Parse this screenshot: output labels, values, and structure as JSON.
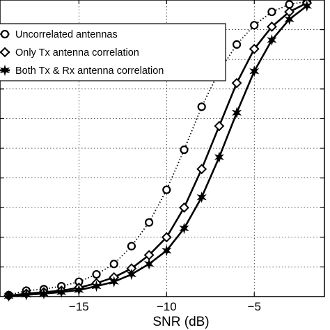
{
  "chart_data": {
    "type": "line",
    "title": "",
    "xlabel": "SNR (dB)",
    "ylabel": "",
    "xlim": [
      -19.5,
      -1
    ],
    "ylim": [
      0,
      1
    ],
    "grid": true,
    "legend_position": "top-left",
    "x_ticks": [
      -15,
      -10,
      -5
    ],
    "x_tick_labels": [
      "−15",
      "−10",
      "−5"
    ],
    "series": [
      {
        "name": "Uncorrelated antennas",
        "line_style": "dotted",
        "marker": "circle",
        "x": [
          -19,
          -18,
          -17,
          -16,
          -15,
          -14,
          -13,
          -12,
          -11,
          -10,
          -9,
          -8,
          -7,
          -6,
          -5,
          -4,
          -3,
          -2
        ],
        "y": [
          0.005,
          0.02,
          0.025,
          0.035,
          0.05,
          0.075,
          0.11,
          0.17,
          0.25,
          0.36,
          0.495,
          0.64,
          0.76,
          0.85,
          0.915,
          0.96,
          0.985,
          0.995
        ]
      },
      {
        "name": "Only Tx antenna correlation",
        "line_style": "solid",
        "marker": "diamond",
        "x": [
          -19,
          -18,
          -17,
          -16,
          -15,
          -14,
          -13,
          -12,
          -11,
          -10,
          -9,
          -8,
          -7,
          -6,
          -5,
          -4,
          -3,
          -2
        ],
        "y": [
          0.003,
          0.01,
          0.015,
          0.02,
          0.03,
          0.045,
          0.065,
          0.095,
          0.14,
          0.2,
          0.3,
          0.43,
          0.575,
          0.72,
          0.835,
          0.91,
          0.96,
          0.99
        ]
      },
      {
        "name": "Both Tx & Rx antenna correlation",
        "line_style": "solid",
        "marker": "hexagram",
        "x": [
          -19,
          -18,
          -17,
          -16,
          -15,
          -14,
          -13,
          -12,
          -11,
          -10,
          -9,
          -8,
          -7,
          -6,
          -5,
          -4,
          -3,
          -2
        ],
        "y": [
          0.002,
          0.006,
          0.01,
          0.015,
          0.022,
          0.035,
          0.05,
          0.075,
          0.11,
          0.155,
          0.23,
          0.335,
          0.47,
          0.62,
          0.76,
          0.865,
          0.935,
          0.98
        ]
      }
    ]
  }
}
